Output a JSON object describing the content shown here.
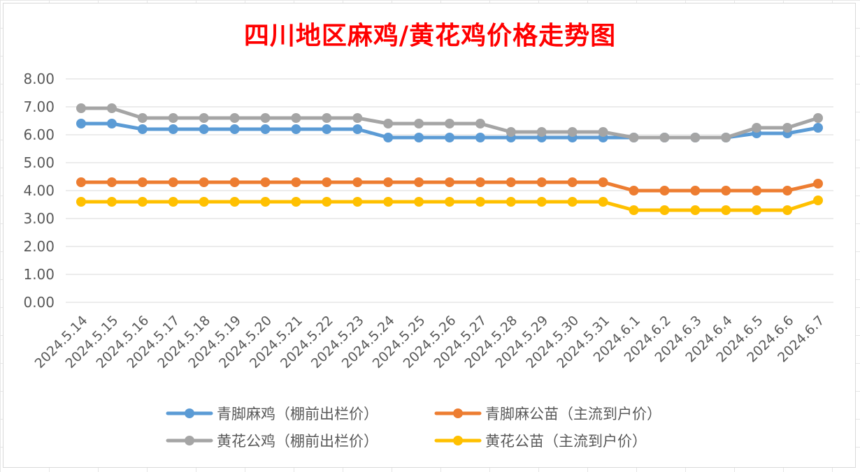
{
  "chart_data": {
    "type": "line",
    "title": "四川地区麻鸡/黄花鸡价格走势图",
    "xlabel": "",
    "ylabel": "",
    "ylim": [
      0,
      8
    ],
    "yticks": [
      "0.00",
      "1.00",
      "2.00",
      "3.00",
      "4.00",
      "5.00",
      "6.00",
      "7.00",
      "8.00"
    ],
    "grid": true,
    "legend_position": "bottom",
    "categories": [
      "2024.5.14",
      "2024.5.15",
      "2024.5.16",
      "2024.5.17",
      "2024.5.18",
      "2024.5.19",
      "2024.5.20",
      "2024.5.21",
      "2024.5.22",
      "2024.5.23",
      "2024.5.24",
      "2024.5.25",
      "2024.5.26",
      "2024.5.27",
      "2024.5.28",
      "2024.5.29",
      "2024.5.30",
      "2024.5.31",
      "2024.6.1",
      "2024.6.2",
      "2024.6.3",
      "2024.6.4",
      "2024.6.5",
      "2024.6.6",
      "2024.6.7"
    ],
    "series": [
      {
        "name": "青脚麻鸡（棚前出栏价）",
        "color": "#5b9bd5",
        "values": [
          6.4,
          6.4,
          6.2,
          6.2,
          6.2,
          6.2,
          6.2,
          6.2,
          6.2,
          6.2,
          5.9,
          5.9,
          5.9,
          5.9,
          5.9,
          5.9,
          5.9,
          5.9,
          5.9,
          5.9,
          5.9,
          5.9,
          6.05,
          6.05,
          6.25
        ]
      },
      {
        "name": "青脚麻公苗（主流到户价）",
        "color": "#ed7d31",
        "values": [
          4.3,
          4.3,
          4.3,
          4.3,
          4.3,
          4.3,
          4.3,
          4.3,
          4.3,
          4.3,
          4.3,
          4.3,
          4.3,
          4.3,
          4.3,
          4.3,
          4.3,
          4.3,
          4.0,
          4.0,
          4.0,
          4.0,
          4.0,
          4.0,
          4.25
        ]
      },
      {
        "name": "黄花公鸡（棚前出栏价）",
        "color": "#a5a5a5",
        "values": [
          6.95,
          6.95,
          6.6,
          6.6,
          6.6,
          6.6,
          6.6,
          6.6,
          6.6,
          6.6,
          6.4,
          6.4,
          6.4,
          6.4,
          6.1,
          6.1,
          6.1,
          6.1,
          5.9,
          5.9,
          5.9,
          5.9,
          6.25,
          6.25,
          6.6
        ]
      },
      {
        "name": "黄花公苗（主流到户价）",
        "color": "#ffc000",
        "values": [
          3.6,
          3.6,
          3.6,
          3.6,
          3.6,
          3.6,
          3.6,
          3.6,
          3.6,
          3.6,
          3.6,
          3.6,
          3.6,
          3.6,
          3.6,
          3.6,
          3.6,
          3.6,
          3.3,
          3.3,
          3.3,
          3.3,
          3.3,
          3.3,
          3.65
        ]
      }
    ]
  },
  "colors": {
    "title": "#ff0000",
    "axis_text": "#595959",
    "gridline": "#d9d9d9"
  }
}
